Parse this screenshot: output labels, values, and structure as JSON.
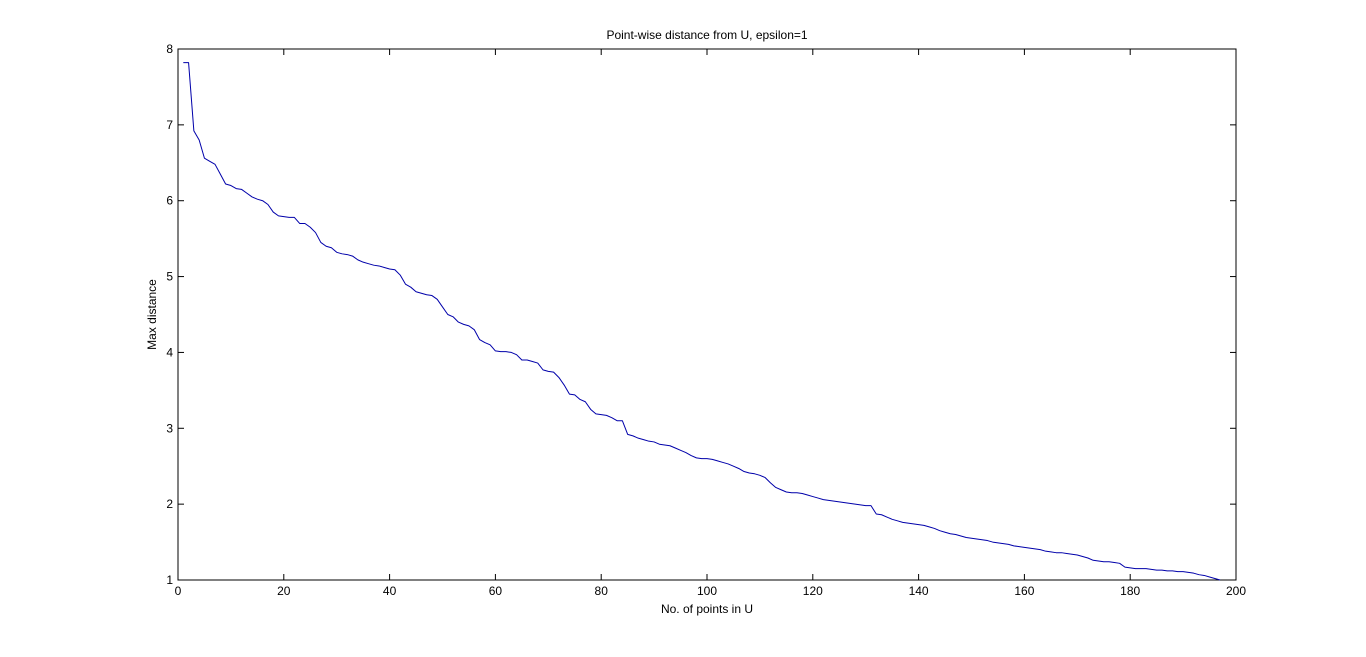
{
  "chart_data": {
    "type": "line",
    "title": "Point-wise distance from U, epsilon=1",
    "xlabel": "No. of points in U",
    "ylabel": "Max distance",
    "xlim": [
      0,
      200
    ],
    "ylim": [
      1,
      8
    ],
    "x_ticks": [
      0,
      20,
      40,
      60,
      80,
      100,
      120,
      140,
      160,
      180,
      200
    ],
    "y_ticks": [
      1,
      2,
      3,
      4,
      5,
      6,
      7,
      8
    ],
    "grid": false,
    "legend": "none",
    "series": [
      {
        "color": "#0000aa",
        "points": [
          [
            1,
            7.82
          ],
          [
            2,
            7.82
          ],
          [
            3,
            6.92
          ],
          [
            4,
            6.8
          ],
          [
            5,
            6.56
          ],
          [
            6,
            6.52
          ],
          [
            7,
            6.48
          ],
          [
            8,
            6.35
          ],
          [
            9,
            6.22
          ],
          [
            10,
            6.2
          ],
          [
            11,
            6.16
          ],
          [
            12,
            6.15
          ],
          [
            13,
            6.1
          ],
          [
            14,
            6.05
          ],
          [
            15,
            6.02
          ],
          [
            16,
            6.0
          ],
          [
            17,
            5.95
          ],
          [
            18,
            5.85
          ],
          [
            19,
            5.8
          ],
          [
            20,
            5.79
          ],
          [
            21,
            5.78
          ],
          [
            22,
            5.78
          ],
          [
            23,
            5.7
          ],
          [
            24,
            5.7
          ],
          [
            25,
            5.65
          ],
          [
            26,
            5.58
          ],
          [
            27,
            5.45
          ],
          [
            28,
            5.4
          ],
          [
            29,
            5.38
          ],
          [
            30,
            5.32
          ],
          [
            31,
            5.3
          ],
          [
            32,
            5.29
          ],
          [
            33,
            5.27
          ],
          [
            34,
            5.22
          ],
          [
            35,
            5.19
          ],
          [
            36,
            5.17
          ],
          [
            37,
            5.15
          ],
          [
            38,
            5.14
          ],
          [
            39,
            5.12
          ],
          [
            40,
            5.1
          ],
          [
            41,
            5.09
          ],
          [
            42,
            5.02
          ],
          [
            43,
            4.9
          ],
          [
            44,
            4.86
          ],
          [
            45,
            4.8
          ],
          [
            46,
            4.78
          ],
          [
            47,
            4.76
          ],
          [
            48,
            4.75
          ],
          [
            49,
            4.7
          ],
          [
            50,
            4.6
          ],
          [
            51,
            4.5
          ],
          [
            52,
            4.47
          ],
          [
            53,
            4.4
          ],
          [
            54,
            4.37
          ],
          [
            55,
            4.35
          ],
          [
            56,
            4.3
          ],
          [
            57,
            4.17
          ],
          [
            58,
            4.13
          ],
          [
            59,
            4.1
          ],
          [
            60,
            4.02
          ],
          [
            61,
            4.01
          ],
          [
            62,
            4.01
          ],
          [
            63,
            4.0
          ],
          [
            64,
            3.97
          ],
          [
            65,
            3.9
          ],
          [
            66,
            3.9
          ],
          [
            67,
            3.88
          ],
          [
            68,
            3.86
          ],
          [
            69,
            3.77
          ],
          [
            70,
            3.75
          ],
          [
            71,
            3.74
          ],
          [
            72,
            3.67
          ],
          [
            73,
            3.57
          ],
          [
            74,
            3.45
          ],
          [
            75,
            3.44
          ],
          [
            76,
            3.38
          ],
          [
            77,
            3.35
          ],
          [
            78,
            3.25
          ],
          [
            79,
            3.19
          ],
          [
            80,
            3.18
          ],
          [
            81,
            3.17
          ],
          [
            82,
            3.14
          ],
          [
            83,
            3.1
          ],
          [
            84,
            3.1
          ],
          [
            85,
            2.92
          ],
          [
            86,
            2.9
          ],
          [
            87,
            2.87
          ],
          [
            88,
            2.85
          ],
          [
            89,
            2.83
          ],
          [
            90,
            2.82
          ],
          [
            91,
            2.79
          ],
          [
            92,
            2.78
          ],
          [
            93,
            2.77
          ],
          [
            94,
            2.74
          ],
          [
            95,
            2.71
          ],
          [
            96,
            2.68
          ],
          [
            97,
            2.64
          ],
          [
            98,
            2.61
          ],
          [
            99,
            2.6
          ],
          [
            100,
            2.6
          ],
          [
            101,
            2.59
          ],
          [
            102,
            2.57
          ],
          [
            103,
            2.55
          ],
          [
            104,
            2.53
          ],
          [
            105,
            2.5
          ],
          [
            106,
            2.47
          ],
          [
            107,
            2.43
          ],
          [
            108,
            2.41
          ],
          [
            109,
            2.4
          ],
          [
            110,
            2.38
          ],
          [
            111,
            2.35
          ],
          [
            112,
            2.28
          ],
          [
            113,
            2.22
          ],
          [
            114,
            2.19
          ],
          [
            115,
            2.16
          ],
          [
            116,
            2.15
          ],
          [
            117,
            2.15
          ],
          [
            118,
            2.14
          ],
          [
            119,
            2.12
          ],
          [
            120,
            2.1
          ],
          [
            121,
            2.08
          ],
          [
            122,
            2.06
          ],
          [
            123,
            2.05
          ],
          [
            124,
            2.04
          ],
          [
            125,
            2.03
          ],
          [
            126,
            2.02
          ],
          [
            127,
            2.01
          ],
          [
            128,
            2.0
          ],
          [
            129,
            1.99
          ],
          [
            130,
            1.98
          ],
          [
            131,
            1.98
          ],
          [
            132,
            1.87
          ],
          [
            133,
            1.86
          ],
          [
            134,
            1.83
          ],
          [
            135,
            1.8
          ],
          [
            136,
            1.78
          ],
          [
            137,
            1.76
          ],
          [
            138,
            1.75
          ],
          [
            139,
            1.74
          ],
          [
            140,
            1.73
          ],
          [
            141,
            1.72
          ],
          [
            142,
            1.7
          ],
          [
            143,
            1.68
          ],
          [
            144,
            1.65
          ],
          [
            145,
            1.63
          ],
          [
            146,
            1.61
          ],
          [
            147,
            1.6
          ],
          [
            148,
            1.58
          ],
          [
            149,
            1.56
          ],
          [
            150,
            1.55
          ],
          [
            151,
            1.54
          ],
          [
            152,
            1.53
          ],
          [
            153,
            1.52
          ],
          [
            154,
            1.5
          ],
          [
            155,
            1.49
          ],
          [
            156,
            1.48
          ],
          [
            157,
            1.47
          ],
          [
            158,
            1.45
          ],
          [
            159,
            1.44
          ],
          [
            160,
            1.43
          ],
          [
            161,
            1.42
          ],
          [
            162,
            1.41
          ],
          [
            163,
            1.4
          ],
          [
            164,
            1.38
          ],
          [
            165,
            1.37
          ],
          [
            166,
            1.36
          ],
          [
            167,
            1.36
          ],
          [
            168,
            1.35
          ],
          [
            169,
            1.34
          ],
          [
            170,
            1.33
          ],
          [
            171,
            1.31
          ],
          [
            172,
            1.29
          ],
          [
            173,
            1.26
          ],
          [
            174,
            1.25
          ],
          [
            175,
            1.24
          ],
          [
            176,
            1.24
          ],
          [
            177,
            1.23
          ],
          [
            178,
            1.22
          ],
          [
            179,
            1.17
          ],
          [
            180,
            1.16
          ],
          [
            181,
            1.15
          ],
          [
            182,
            1.15
          ],
          [
            183,
            1.15
          ],
          [
            184,
            1.14
          ],
          [
            185,
            1.13
          ],
          [
            186,
            1.13
          ],
          [
            187,
            1.12
          ],
          [
            188,
            1.12
          ],
          [
            189,
            1.11
          ],
          [
            190,
            1.11
          ],
          [
            191,
            1.1
          ],
          [
            192,
            1.09
          ],
          [
            193,
            1.07
          ],
          [
            194,
            1.06
          ],
          [
            195,
            1.04
          ],
          [
            196,
            1.02
          ],
          [
            197,
            1.0
          ]
        ]
      }
    ]
  }
}
